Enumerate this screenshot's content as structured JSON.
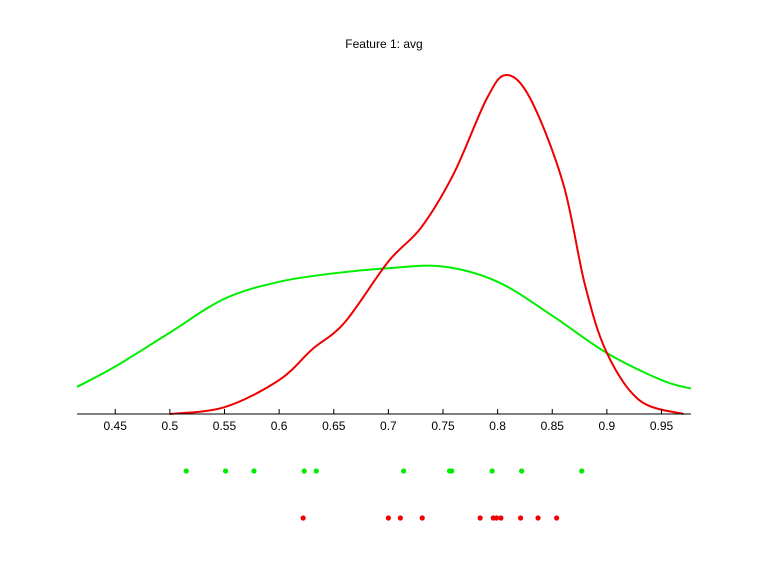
{
  "chart_data": {
    "type": "line",
    "title": "Feature 1: avg",
    "xlabel": "",
    "ylabel": "",
    "xlim": [
      0.415,
      0.977
    ],
    "ylim": [
      0,
      1
    ],
    "grid": false,
    "legend": "none",
    "xticks": [
      {
        "value": 0.45,
        "label": "0.45"
      },
      {
        "value": 0.5,
        "label": "0.5"
      },
      {
        "value": 0.55,
        "label": "0.55"
      },
      {
        "value": 0.6,
        "label": "0.6"
      },
      {
        "value": 0.65,
        "label": "0.65"
      },
      {
        "value": 0.7,
        "label": "0.7"
      },
      {
        "value": 0.75,
        "label": "0.75"
      },
      {
        "value": 0.8,
        "label": "0.8"
      },
      {
        "value": 0.85,
        "label": "0.85"
      },
      {
        "value": 0.9,
        "label": "0.9"
      },
      {
        "value": 0.95,
        "label": "0.95"
      }
    ],
    "series": [
      {
        "color": "#00ee00",
        "curve": [
          [
            0.415,
            0.08
          ],
          [
            0.45,
            0.14
          ],
          [
            0.5,
            0.24
          ],
          [
            0.55,
            0.34
          ],
          [
            0.6,
            0.39
          ],
          [
            0.65,
            0.415
          ],
          [
            0.7,
            0.43
          ],
          [
            0.75,
            0.435
          ],
          [
            0.8,
            0.39
          ],
          [
            0.85,
            0.29
          ],
          [
            0.9,
            0.18
          ],
          [
            0.95,
            0.1
          ],
          [
            0.977,
            0.075
          ]
        ],
        "points": [
          0.515,
          0.551,
          0.577,
          0.623,
          0.634,
          0.714,
          0.756,
          0.758,
          0.795,
          0.822,
          0.877
        ]
      },
      {
        "color": "#ee0000",
        "curve": [
          [
            0.5,
            0.0
          ],
          [
            0.55,
            0.02
          ],
          [
            0.6,
            0.1
          ],
          [
            0.63,
            0.19
          ],
          [
            0.66,
            0.27
          ],
          [
            0.7,
            0.45
          ],
          [
            0.73,
            0.55
          ],
          [
            0.76,
            0.71
          ],
          [
            0.79,
            0.93
          ],
          [
            0.808,
            1.0
          ],
          [
            0.83,
            0.93
          ],
          [
            0.86,
            0.68
          ],
          [
            0.88,
            0.38
          ],
          [
            0.9,
            0.18
          ],
          [
            0.93,
            0.04
          ],
          [
            0.97,
            0.0
          ]
        ],
        "points": [
          0.622,
          0.7,
          0.711,
          0.731,
          0.784,
          0.796,
          0.799,
          0.803,
          0.821,
          0.837,
          0.854
        ]
      }
    ]
  }
}
